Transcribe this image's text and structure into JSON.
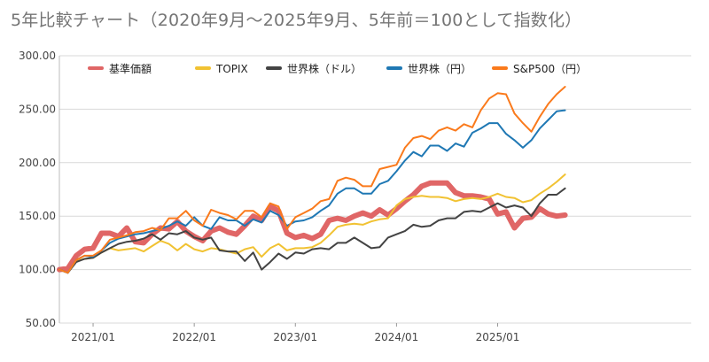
{
  "chart_data": {
    "type": "line",
    "title": "5年比較チャート（2020年9月〜2025年9月、5年前＝100として指数化）",
    "xlabel": "",
    "ylabel": "",
    "ylim": [
      50,
      300
    ],
    "y_ticks": [
      "50.00",
      "100.00",
      "150.00",
      "200.00",
      "250.00",
      "300.00"
    ],
    "x_tick_labels": [
      "2021/01",
      "2022/01",
      "2023/01",
      "2024/01",
      "2025/01"
    ],
    "x_start": "2020/09",
    "grid": "horizontal",
    "legend_position": "top",
    "x": [
      "2020/09",
      "2020/10",
      "2020/11",
      "2020/12",
      "2021/01",
      "2021/02",
      "2021/03",
      "2021/04",
      "2021/05",
      "2021/06",
      "2021/07",
      "2021/08",
      "2021/09",
      "2021/10",
      "2021/11",
      "2021/12",
      "2022/01",
      "2022/02",
      "2022/03",
      "2022/04",
      "2022/05",
      "2022/06",
      "2022/07",
      "2022/08",
      "2022/09",
      "2022/10",
      "2022/11",
      "2022/12",
      "2023/01",
      "2023/02",
      "2023/03",
      "2023/04",
      "2023/05",
      "2023/06",
      "2023/07",
      "2023/08",
      "2023/09",
      "2023/10",
      "2023/11",
      "2023/12",
      "2024/01",
      "2024/02",
      "2024/03",
      "2024/04",
      "2024/05",
      "2024/06",
      "2024/07",
      "2024/08",
      "2024/09",
      "2024/10",
      "2024/11",
      "2024/12",
      "2025/01",
      "2025/02",
      "2025/03",
      "2025/04",
      "2025/05",
      "2025/06",
      "2025/07",
      "2025/08",
      "2025/09"
    ],
    "series": [
      {
        "name": "基準価額",
        "color": "#e06666",
        "values": [
          100,
          101,
          113,
          119,
          120,
          134,
          134,
          131,
          139,
          126,
          125,
          133,
          139,
          138,
          145,
          136,
          131,
          127,
          136,
          139,
          135,
          133,
          141,
          150,
          146,
          159,
          155,
          134,
          130,
          132,
          129,
          133,
          146,
          148,
          146,
          150,
          153,
          150,
          156,
          151,
          157,
          164,
          170,
          178,
          181,
          181,
          181,
          172,
          169,
          169,
          168,
          166,
          152,
          154,
          139,
          148,
          149,
          157,
          152,
          150,
          151
        ]
      },
      {
        "name": "TOPIX",
        "color": "#f1c232",
        "values": [
          100,
          97,
          108,
          110,
          111,
          116,
          120,
          118,
          119,
          120,
          117,
          122,
          127,
          124,
          118,
          124,
          119,
          117,
          120,
          119,
          117,
          115,
          119,
          121,
          112,
          120,
          124,
          118,
          120,
          120,
          121,
          125,
          132,
          140,
          142,
          143,
          142,
          145,
          147,
          148,
          160,
          166,
          168,
          169,
          168,
          168,
          167,
          164,
          166,
          167,
          166,
          168,
          171,
          168,
          167,
          163,
          165,
          171,
          176,
          182,
          189
        ]
      },
      {
        "name": "世界株（ドル）",
        "color": "#434343",
        "values": [
          100,
          97,
          107,
          110,
          111,
          116,
          120,
          124,
          126,
          127,
          129,
          133,
          128,
          134,
          133,
          136,
          130,
          128,
          130,
          118,
          117,
          117,
          108,
          116,
          100,
          107,
          115,
          110,
          116,
          115,
          119,
          120,
          119,
          125,
          125,
          130,
          125,
          120,
          121,
          130,
          133,
          136,
          142,
          140,
          141,
          146,
          148,
          148,
          154,
          155,
          154,
          158,
          162,
          158,
          160,
          158,
          150,
          162,
          170,
          170,
          176
        ]
      },
      {
        "name": "世界株（円）",
        "color": "#1f78b4",
        "values": [
          100,
          97,
          109,
          113,
          112,
          118,
          125,
          129,
          131,
          133,
          134,
          136,
          138,
          141,
          145,
          141,
          149,
          141,
          138,
          149,
          146,
          146,
          141,
          147,
          144,
          155,
          151,
          141,
          145,
          146,
          149,
          155,
          160,
          171,
          176,
          176,
          171,
          171,
          180,
          183,
          192,
          202,
          210,
          206,
          216,
          216,
          211,
          218,
          215,
          228,
          232,
          237,
          237,
          227,
          221,
          214,
          221,
          232,
          240,
          248,
          249
        ]
      },
      {
        "name": "S&P500（円）",
        "color": "#fa7a1c",
        "values": [
          100,
          97,
          109,
          113,
          113,
          118,
          128,
          130,
          132,
          135,
          136,
          139,
          137,
          148,
          148,
          155,
          146,
          141,
          156,
          153,
          151,
          147,
          155,
          155,
          149,
          162,
          159,
          138,
          149,
          153,
          157,
          164,
          166,
          183,
          186,
          184,
          178,
          178,
          194,
          196,
          198,
          214,
          223,
          225,
          222,
          230,
          233,
          230,
          236,
          233,
          249,
          260,
          265,
          264,
          246,
          237,
          229,
          243,
          255,
          264,
          271
        ]
      }
    ]
  }
}
